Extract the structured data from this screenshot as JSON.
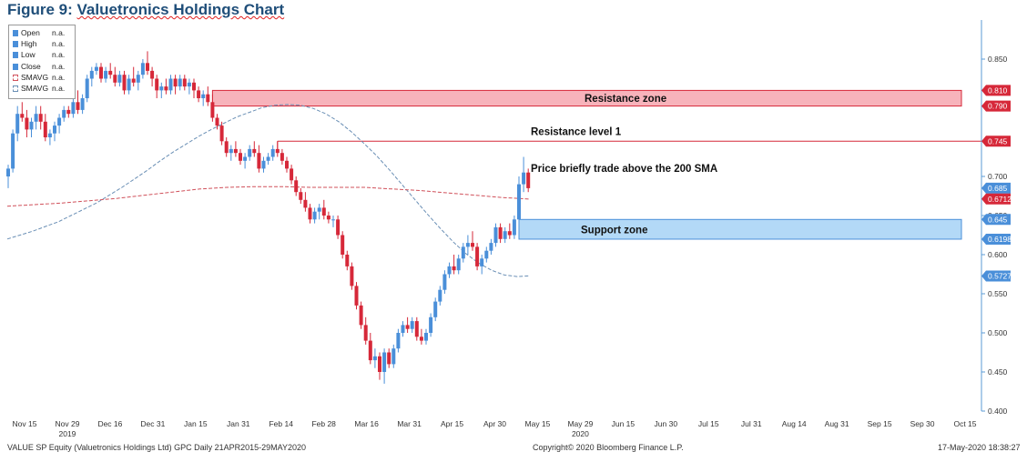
{
  "figure": {
    "prefix": "Figure 9: ",
    "title": "Valuetronics Holdings Chart"
  },
  "legend": {
    "items": [
      {
        "name": "Open",
        "value": "n.a.",
        "color": "#4a8fd9",
        "style": "solid"
      },
      {
        "name": "High",
        "value": "n.a.",
        "color": "#4a8fd9",
        "style": "solid"
      },
      {
        "name": "Low",
        "value": "n.a.",
        "color": "#4a8fd9",
        "style": "solid"
      },
      {
        "name": "Close",
        "value": "n.a.",
        "color": "#4a8fd9",
        "style": "solid"
      },
      {
        "name": "SMAVG",
        "value": "n.a.",
        "color": "#d0505a",
        "style": "dashed"
      },
      {
        "name": "SMAVG",
        "value": "n.a.",
        "color": "#6a8fb5",
        "style": "dashed"
      }
    ]
  },
  "footer": {
    "left": "VALUE SP Equity (Valuetronics Holdings Ltd) GPC  Daily 21APR2015-29MAY2020",
    "center": "Copyright© 2020 Bloomberg Finance L.P.",
    "right": "17-May-2020 18:38:27"
  },
  "chart_data": {
    "type": "candlestick",
    "colors": {
      "up": "#4a8fd9",
      "down": "#d62839",
      "sma_short": "#6a8fb5",
      "sma_long": "#d0505a",
      "resistance_fill": "#f7b3bb",
      "resistance_border": "#d62839",
      "support_fill": "#b3d9f7",
      "support_border": "#4a8fd9",
      "axis": "#5b9bd5"
    },
    "y_axis": {
      "min": 0.4,
      "max": 0.9,
      "position": "right",
      "ticks": [
        "0.850",
        "0.700",
        "0.650",
        "0.600",
        "0.550",
        "0.500",
        "0.450",
        "0.400"
      ],
      "tick_values": [
        0.85,
        0.7,
        0.65,
        0.6,
        0.55,
        0.5,
        0.45,
        0.4
      ]
    },
    "x_axis": {
      "labels": [
        "Nov 15",
        "Nov 29",
        "Dec 16",
        "Dec 31",
        "Jan 15",
        "Jan 31",
        "Feb 14",
        "Feb 28",
        "Mar 16",
        "Mar 31",
        "Apr 15",
        "Apr 30",
        "May 15",
        "May 29",
        "Jun 15",
        "Jun 30",
        "Jul 15",
        "Jul 31",
        "Aug 14",
        "Aug 31",
        "Sep 15",
        "Sep 30",
        "Oct 15"
      ],
      "year_labels": [
        {
          "text": "2019",
          "under": "Nov 29"
        },
        {
          "text": "2020",
          "under": "May 29"
        }
      ]
    },
    "price_tags": [
      {
        "value": 0.81,
        "label": "0.810",
        "color": "#d62839"
      },
      {
        "value": 0.79,
        "label": "0.790",
        "color": "#d62839"
      },
      {
        "value": 0.745,
        "label": "0.745",
        "color": "#d62839"
      },
      {
        "value": 0.685,
        "label": "0.685",
        "color": "#4a8fd9"
      },
      {
        "value": 0.6712,
        "label": "0.6712",
        "color": "#d62839"
      },
      {
        "value": 0.645,
        "label": "0.645",
        "color": "#4a8fd9"
      },
      {
        "value": 0.6198,
        "label": "0.6198",
        "color": "#4a8fd9"
      },
      {
        "value": 0.5727,
        "label": "0.5727",
        "color": "#4a8fd9"
      }
    ],
    "annotations": {
      "resistance_zone": {
        "label": "Resistance zone",
        "low": 0.79,
        "high": 0.81,
        "from": 44
      },
      "resistance_level": {
        "label": "Resistance level 1",
        "value": 0.745,
        "from": 58
      },
      "support_zone": {
        "label": "Support zone",
        "low": 0.6198,
        "high": 0.645,
        "from": 110
      },
      "note": {
        "label": "Price briefly trade above the 200 SMA"
      }
    },
    "candles": [
      [
        0.7,
        0.715,
        0.685,
        0.71
      ],
      [
        0.71,
        0.76,
        0.705,
        0.755
      ],
      [
        0.755,
        0.79,
        0.745,
        0.78
      ],
      [
        0.78,
        0.795,
        0.77,
        0.775
      ],
      [
        0.775,
        0.785,
        0.75,
        0.76
      ],
      [
        0.76,
        0.775,
        0.75,
        0.77
      ],
      [
        0.77,
        0.79,
        0.76,
        0.78
      ],
      [
        0.78,
        0.79,
        0.76,
        0.77
      ],
      [
        0.77,
        0.78,
        0.745,
        0.75
      ],
      [
        0.75,
        0.76,
        0.74,
        0.755
      ],
      [
        0.755,
        0.77,
        0.745,
        0.765
      ],
      [
        0.765,
        0.78,
        0.755,
        0.775
      ],
      [
        0.775,
        0.79,
        0.77,
        0.785
      ],
      [
        0.785,
        0.79,
        0.775,
        0.78
      ],
      [
        0.78,
        0.8,
        0.775,
        0.795
      ],
      [
        0.795,
        0.81,
        0.78,
        0.785
      ],
      [
        0.785,
        0.805,
        0.78,
        0.8
      ],
      [
        0.8,
        0.83,
        0.795,
        0.825
      ],
      [
        0.825,
        0.84,
        0.815,
        0.835
      ],
      [
        0.835,
        0.845,
        0.83,
        0.84
      ],
      [
        0.84,
        0.845,
        0.82,
        0.825
      ],
      [
        0.825,
        0.84,
        0.82,
        0.835
      ],
      [
        0.835,
        0.845,
        0.825,
        0.83
      ],
      [
        0.83,
        0.84,
        0.815,
        0.82
      ],
      [
        0.82,
        0.835,
        0.815,
        0.83
      ],
      [
        0.83,
        0.835,
        0.805,
        0.81
      ],
      [
        0.81,
        0.83,
        0.805,
        0.825
      ],
      [
        0.825,
        0.84,
        0.815,
        0.82
      ],
      [
        0.82,
        0.835,
        0.81,
        0.83
      ],
      [
        0.83,
        0.85,
        0.825,
        0.845
      ],
      [
        0.845,
        0.86,
        0.83,
        0.835
      ],
      [
        0.835,
        0.84,
        0.815,
        0.825
      ],
      [
        0.825,
        0.83,
        0.8,
        0.81
      ],
      [
        0.81,
        0.82,
        0.8,
        0.815
      ],
      [
        0.815,
        0.825,
        0.805,
        0.81
      ],
      [
        0.81,
        0.83,
        0.805,
        0.825
      ],
      [
        0.825,
        0.83,
        0.805,
        0.815
      ],
      [
        0.815,
        0.83,
        0.81,
        0.825
      ],
      [
        0.825,
        0.83,
        0.81,
        0.815
      ],
      [
        0.815,
        0.825,
        0.805,
        0.82
      ],
      [
        0.82,
        0.825,
        0.8,
        0.81
      ],
      [
        0.81,
        0.815,
        0.795,
        0.8
      ],
      [
        0.8,
        0.81,
        0.79,
        0.805
      ],
      [
        0.805,
        0.815,
        0.79,
        0.795
      ],
      [
        0.795,
        0.805,
        0.77,
        0.775
      ],
      [
        0.775,
        0.78,
        0.76,
        0.765
      ],
      [
        0.765,
        0.77,
        0.74,
        0.745
      ],
      [
        0.745,
        0.75,
        0.725,
        0.73
      ],
      [
        0.73,
        0.74,
        0.72,
        0.735
      ],
      [
        0.735,
        0.745,
        0.725,
        0.73
      ],
      [
        0.73,
        0.735,
        0.715,
        0.72
      ],
      [
        0.72,
        0.73,
        0.71,
        0.725
      ],
      [
        0.725,
        0.74,
        0.72,
        0.735
      ],
      [
        0.735,
        0.745,
        0.725,
        0.73
      ],
      [
        0.73,
        0.74,
        0.705,
        0.71
      ],
      [
        0.71,
        0.725,
        0.705,
        0.72
      ],
      [
        0.72,
        0.73,
        0.715,
        0.725
      ],
      [
        0.725,
        0.74,
        0.72,
        0.735
      ],
      [
        0.735,
        0.745,
        0.725,
        0.73
      ],
      [
        0.73,
        0.735,
        0.715,
        0.72
      ],
      [
        0.72,
        0.725,
        0.705,
        0.71
      ],
      [
        0.71,
        0.715,
        0.69,
        0.695
      ],
      [
        0.695,
        0.7,
        0.675,
        0.68
      ],
      [
        0.68,
        0.685,
        0.665,
        0.67
      ],
      [
        0.67,
        0.68,
        0.655,
        0.66
      ],
      [
        0.66,
        0.665,
        0.64,
        0.645
      ],
      [
        0.645,
        0.66,
        0.64,
        0.655
      ],
      [
        0.655,
        0.665,
        0.645,
        0.66
      ],
      [
        0.66,
        0.67,
        0.645,
        0.65
      ],
      [
        0.65,
        0.655,
        0.64,
        0.645
      ],
      [
        0.645,
        0.65,
        0.635,
        0.645
      ],
      [
        0.645,
        0.65,
        0.62,
        0.625
      ],
      [
        0.625,
        0.63,
        0.595,
        0.6
      ],
      [
        0.6,
        0.605,
        0.58,
        0.585
      ],
      [
        0.585,
        0.59,
        0.555,
        0.56
      ],
      [
        0.56,
        0.565,
        0.53,
        0.535
      ],
      [
        0.535,
        0.54,
        0.505,
        0.51
      ],
      [
        0.51,
        0.52,
        0.485,
        0.49
      ],
      [
        0.49,
        0.5,
        0.46,
        0.465
      ],
      [
        0.465,
        0.48,
        0.455,
        0.47
      ],
      [
        0.47,
        0.475,
        0.44,
        0.45
      ],
      [
        0.45,
        0.48,
        0.435,
        0.475
      ],
      [
        0.475,
        0.48,
        0.455,
        0.46
      ],
      [
        0.46,
        0.485,
        0.455,
        0.48
      ],
      [
        0.48,
        0.505,
        0.475,
        0.5
      ],
      [
        0.5,
        0.515,
        0.495,
        0.51
      ],
      [
        0.51,
        0.52,
        0.5,
        0.505
      ],
      [
        0.505,
        0.52,
        0.5,
        0.515
      ],
      [
        0.515,
        0.52,
        0.49,
        0.495
      ],
      [
        0.495,
        0.505,
        0.485,
        0.49
      ],
      [
        0.49,
        0.505,
        0.485,
        0.5
      ],
      [
        0.5,
        0.525,
        0.495,
        0.52
      ],
      [
        0.52,
        0.545,
        0.515,
        0.54
      ],
      [
        0.54,
        0.56,
        0.535,
        0.555
      ],
      [
        0.555,
        0.58,
        0.55,
        0.575
      ],
      [
        0.575,
        0.59,
        0.57,
        0.585
      ],
      [
        0.585,
        0.6,
        0.575,
        0.58
      ],
      [
        0.58,
        0.6,
        0.575,
        0.595
      ],
      [
        0.595,
        0.615,
        0.59,
        0.61
      ],
      [
        0.61,
        0.625,
        0.6,
        0.615
      ],
      [
        0.615,
        0.63,
        0.605,
        0.61
      ],
      [
        0.61,
        0.615,
        0.58,
        0.585
      ],
      [
        0.585,
        0.6,
        0.575,
        0.595
      ],
      [
        0.595,
        0.61,
        0.59,
        0.605
      ],
      [
        0.605,
        0.62,
        0.6,
        0.615
      ],
      [
        0.615,
        0.64,
        0.61,
        0.635
      ],
      [
        0.635,
        0.64,
        0.615,
        0.62
      ],
      [
        0.62,
        0.635,
        0.615,
        0.63
      ],
      [
        0.63,
        0.64,
        0.62,
        0.625
      ],
      [
        0.625,
        0.65,
        0.62,
        0.645
      ],
      [
        0.645,
        0.7,
        0.64,
        0.69
      ],
      [
        0.69,
        0.725,
        0.68,
        0.705
      ],
      [
        0.705,
        0.71,
        0.68,
        0.685
      ]
    ],
    "sma_short": [
      0.62,
      0.625,
      0.63,
      0.636,
      0.642,
      0.65,
      0.658,
      0.666,
      0.676,
      0.686,
      0.697,
      0.708,
      0.72,
      0.731,
      0.741,
      0.751,
      0.76,
      0.768,
      0.776,
      0.782,
      0.788,
      0.791,
      0.792,
      0.791,
      0.787,
      0.78,
      0.77,
      0.757,
      0.742,
      0.726,
      0.708,
      0.689,
      0.67,
      0.651,
      0.633,
      0.616,
      0.601,
      0.589,
      0.58,
      0.574,
      0.572,
      0.573
    ],
    "sma_long": [
      0.662,
      0.664,
      0.666,
      0.669,
      0.672,
      0.676,
      0.68,
      0.684,
      0.686,
      0.687,
      0.687,
      0.686,
      0.686,
      0.686,
      0.684,
      0.682,
      0.679,
      0.676,
      0.673,
      0.671
    ]
  }
}
